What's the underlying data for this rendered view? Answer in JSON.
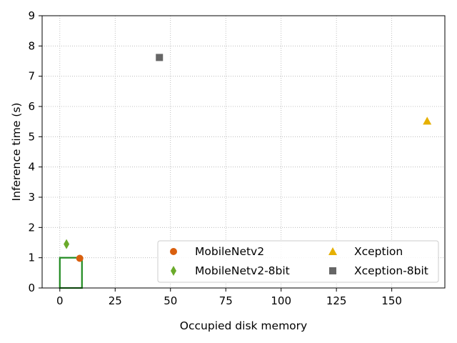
{
  "chart_data": {
    "type": "scatter",
    "title": "",
    "xlabel": "Occupied disk memory",
    "ylabel": "Inference time (s)",
    "xlim": [
      -8,
      174
    ],
    "ylim": [
      0,
      9
    ],
    "xticks": [
      0,
      25,
      50,
      75,
      100,
      125,
      150
    ],
    "yticks": [
      0,
      1,
      2,
      3,
      4,
      5,
      6,
      7,
      8,
      9
    ],
    "grid": true,
    "legend_placement": "lower-right",
    "legend_columns": 2,
    "series": [
      {
        "name": "MobileNetv2",
        "marker": "circle",
        "color": "#d95f0e",
        "points": [
          [
            9,
            0.98
          ]
        ]
      },
      {
        "name": "MobileNetv2-8bit",
        "marker": "thin-diamond",
        "color": "#6aaa2a",
        "points": [
          [
            3,
            1.45
          ]
        ]
      },
      {
        "name": "Xception",
        "marker": "triangle",
        "color": "#e6b000",
        "points": [
          [
            166,
            5.52
          ]
        ]
      },
      {
        "name": "Xception-8bit",
        "marker": "square",
        "color": "#666666",
        "points": [
          [
            45,
            7.62
          ]
        ]
      }
    ],
    "highlight_box": {
      "x": [
        0,
        10
      ],
      "y": [
        0,
        1
      ],
      "color": "#1f8a1f"
    }
  }
}
